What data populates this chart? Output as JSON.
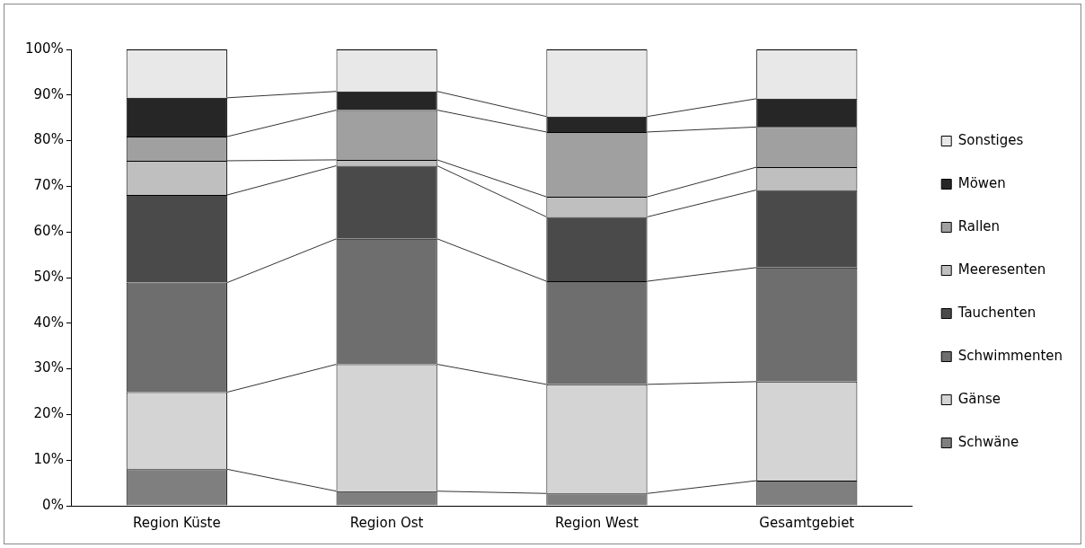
{
  "chart_data": {
    "type": "bar",
    "stacked": true,
    "categories": [
      "Region Küste",
      "Region Ost",
      "Region West",
      "Gesamtgebiet"
    ],
    "series": [
      {
        "name": "Schwäne",
        "color": "#7f7f7f",
        "values": [
          8.0,
          3.2,
          2.7,
          5.5
        ]
      },
      {
        "name": "Gänse",
        "color": "#d4d4d4",
        "values": [
          16.9,
          27.8,
          23.9,
          21.7
        ]
      },
      {
        "name": "Schwimmenten",
        "color": "#6e6e6e",
        "values": [
          24.0,
          27.5,
          22.6,
          25.0
        ]
      },
      {
        "name": "Tauchenten",
        "color": "#4a4a4a",
        "values": [
          19.2,
          16.0,
          14.1,
          17.0
        ]
      },
      {
        "name": "Meeresenten",
        "color": "#bfbfbf",
        "values": [
          7.5,
          1.3,
          4.4,
          5.0
        ]
      },
      {
        "name": "Rallen",
        "color": "#a0a0a0",
        "values": [
          5.3,
          10.9,
          14.2,
          8.8
        ]
      },
      {
        "name": "Möwen",
        "color": "#262626",
        "values": [
          8.5,
          4.1,
          3.4,
          6.2
        ]
      },
      {
        "name": "Sonstiges",
        "color": "#e8e8e8",
        "values": [
          10.6,
          9.2,
          14.7,
          10.8
        ]
      }
    ],
    "ylim": [
      0,
      100
    ],
    "yticks": [
      {
        "value": 0,
        "label": "0%"
      },
      {
        "value": 10,
        "label": "10%"
      },
      {
        "value": 20,
        "label": "20%"
      },
      {
        "value": 30,
        "label": "30%"
      },
      {
        "value": 40,
        "label": "40%"
      },
      {
        "value": 50,
        "label": "50%"
      },
      {
        "value": 60,
        "label": "60%"
      },
      {
        "value": 70,
        "label": "70%"
      },
      {
        "value": 80,
        "label": "80%"
      },
      {
        "value": 90,
        "label": "90%"
      },
      {
        "value": 100,
        "label": "100%"
      }
    ],
    "legend": "right"
  }
}
